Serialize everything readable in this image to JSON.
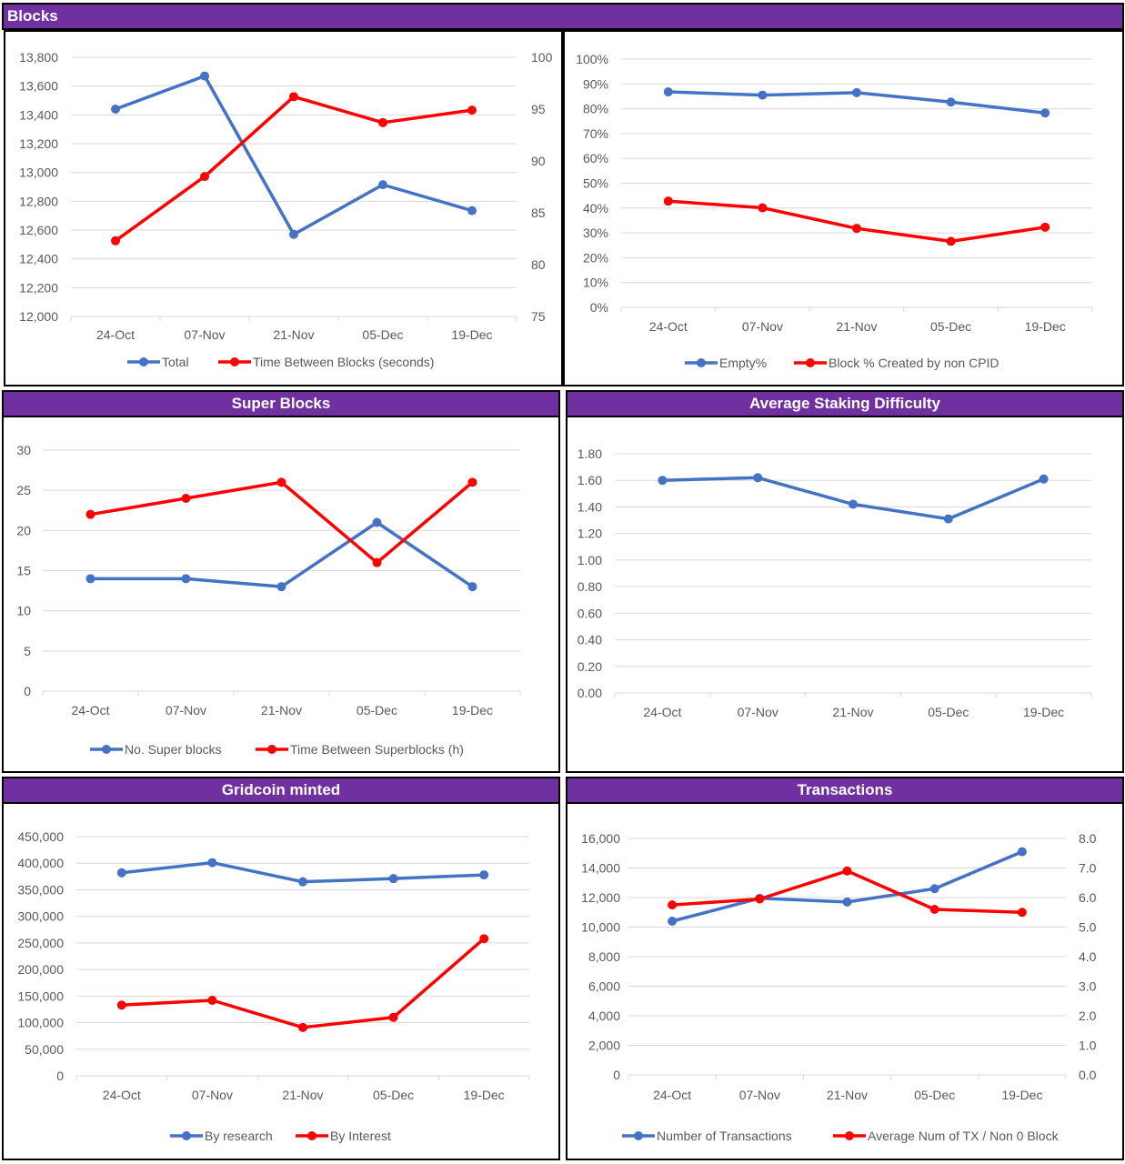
{
  "headers": {
    "blocks": "Blocks",
    "super_blocks": "Super Blocks",
    "staking": "Average Staking Difficulty",
    "minted": "Gridcoin minted",
    "transactions": "Transactions"
  },
  "colors": {
    "header_bg": "#7030a0",
    "blue": "#4472c4",
    "red": "#ff0000",
    "grid": "#d9d9d9"
  },
  "chart_data": [
    {
      "id": "blocks-total",
      "type": "line",
      "categories": [
        "24-Oct",
        "07-Nov",
        "21-Nov",
        "05-Dec",
        "19-Dec"
      ],
      "y_left": {
        "min": 12000,
        "max": 13800,
        "step": 200,
        "ticks": [
          "12,000",
          "12,200",
          "12,400",
          "12,600",
          "12,800",
          "13,000",
          "13,200",
          "13,400",
          "13,600",
          "13,800"
        ]
      },
      "y_right": {
        "min": 75,
        "max": 100,
        "step": 5,
        "ticks": [
          "75",
          "80",
          "85",
          "90",
          "95",
          "100"
        ]
      },
      "series": [
        {
          "name": "Total",
          "axis": "left",
          "color": "#4472c4",
          "values": [
            13440,
            13670,
            12570,
            12915,
            12735
          ]
        },
        {
          "name": "Time Between Blocks (seconds)",
          "axis": "right",
          "color": "#ff0000",
          "values": [
            82.3,
            88.5,
            96.2,
            93.7,
            94.9
          ]
        }
      ],
      "grid": true,
      "legend": "bottom"
    },
    {
      "id": "blocks-pct",
      "type": "line",
      "categories": [
        "24-Oct",
        "07-Nov",
        "21-Nov",
        "05-Dec",
        "19-Dec"
      ],
      "y_left": {
        "min": 0,
        "max": 100,
        "step": 10,
        "ticks": [
          "0%",
          "10%",
          "20%",
          "30%",
          "40%",
          "50%",
          "60%",
          "70%",
          "80%",
          "90%",
          "100%"
        ]
      },
      "series": [
        {
          "name": "Empty%",
          "axis": "left",
          "color": "#4472c4",
          "values": [
            86.8,
            85.5,
            86.5,
            82.7,
            78.3
          ]
        },
        {
          "name": "Block % Created by non CPID",
          "axis": "left",
          "color": "#ff0000",
          "values": [
            42.8,
            40.1,
            31.8,
            26.6,
            32.3
          ]
        }
      ],
      "grid": true,
      "legend": "bottom"
    },
    {
      "id": "super-blocks",
      "type": "line",
      "categories": [
        "24-Oct",
        "07-Nov",
        "21-Nov",
        "05-Dec",
        "19-Dec"
      ],
      "y_left": {
        "min": 0,
        "max": 30,
        "step": 5,
        "ticks": [
          "0",
          "5",
          "10",
          "15",
          "20",
          "25",
          "30"
        ]
      },
      "series": [
        {
          "name": "No. Super blocks",
          "axis": "left",
          "color": "#4472c4",
          "values": [
            14,
            14,
            13,
            21,
            13
          ]
        },
        {
          "name": "Time Between Superblocks (h)",
          "axis": "left",
          "color": "#ff0000",
          "values": [
            22,
            24,
            26,
            16,
            26
          ]
        }
      ],
      "grid": true,
      "legend": "bottom"
    },
    {
      "id": "staking",
      "type": "line",
      "categories": [
        "24-Oct",
        "07-Nov",
        "21-Nov",
        "05-Dec",
        "19-Dec"
      ],
      "y_left": {
        "min": 0,
        "max": 1.8,
        "step": 0.2,
        "ticks": [
          "0.00",
          "0.20",
          "0.40",
          "0.60",
          "0.80",
          "1.00",
          "1.20",
          "1.40",
          "1.60",
          "1.80"
        ]
      },
      "series": [
        {
          "name": "",
          "axis": "left",
          "color": "#4472c4",
          "values": [
            1.6,
            1.62,
            1.42,
            1.31,
            1.61
          ]
        }
      ],
      "grid": true,
      "legend": "none"
    },
    {
      "id": "minted",
      "type": "line",
      "categories": [
        "24-Oct",
        "07-Nov",
        "21-Nov",
        "05-Dec",
        "19-Dec"
      ],
      "y_left": {
        "min": 0,
        "max": 450000,
        "step": 50000,
        "ticks": [
          "0",
          "50,000",
          "100,000",
          "150,000",
          "200,000",
          "250,000",
          "300,000",
          "350,000",
          "400,000",
          "450,000"
        ]
      },
      "series": [
        {
          "name": "By research",
          "axis": "left",
          "color": "#4472c4",
          "values": [
            382000,
            401000,
            365000,
            371000,
            378000
          ]
        },
        {
          "name": "By Interest",
          "axis": "left",
          "color": "#ff0000",
          "values": [
            133000,
            142000,
            91000,
            110000,
            258000
          ]
        }
      ],
      "grid": true,
      "legend": "bottom"
    },
    {
      "id": "transactions",
      "type": "line",
      "categories": [
        "24-Oct",
        "07-Nov",
        "21-Nov",
        "05-Dec",
        "19-Dec"
      ],
      "y_left": {
        "min": 0,
        "max": 16000,
        "step": 2000,
        "ticks": [
          "0",
          "2,000",
          "4,000",
          "6,000",
          "8,000",
          "10,000",
          "12,000",
          "14,000",
          "16,000"
        ]
      },
      "y_right": {
        "min": 0,
        "max": 8,
        "step": 1,
        "ticks": [
          "0.0",
          "1.0",
          "2.0",
          "3.0",
          "4.0",
          "5.0",
          "6.0",
          "7.0",
          "8.0"
        ]
      },
      "series": [
        {
          "name": "Number of Transactions",
          "axis": "left",
          "color": "#4472c4",
          "values": [
            10400,
            11950,
            11700,
            12600,
            15100
          ]
        },
        {
          "name": "Average Num of TX / Non 0 Block",
          "axis": "right",
          "color": "#ff0000",
          "values": [
            5.75,
            5.95,
            6.9,
            5.6,
            5.5
          ]
        }
      ],
      "grid": true,
      "legend": "bottom"
    }
  ]
}
